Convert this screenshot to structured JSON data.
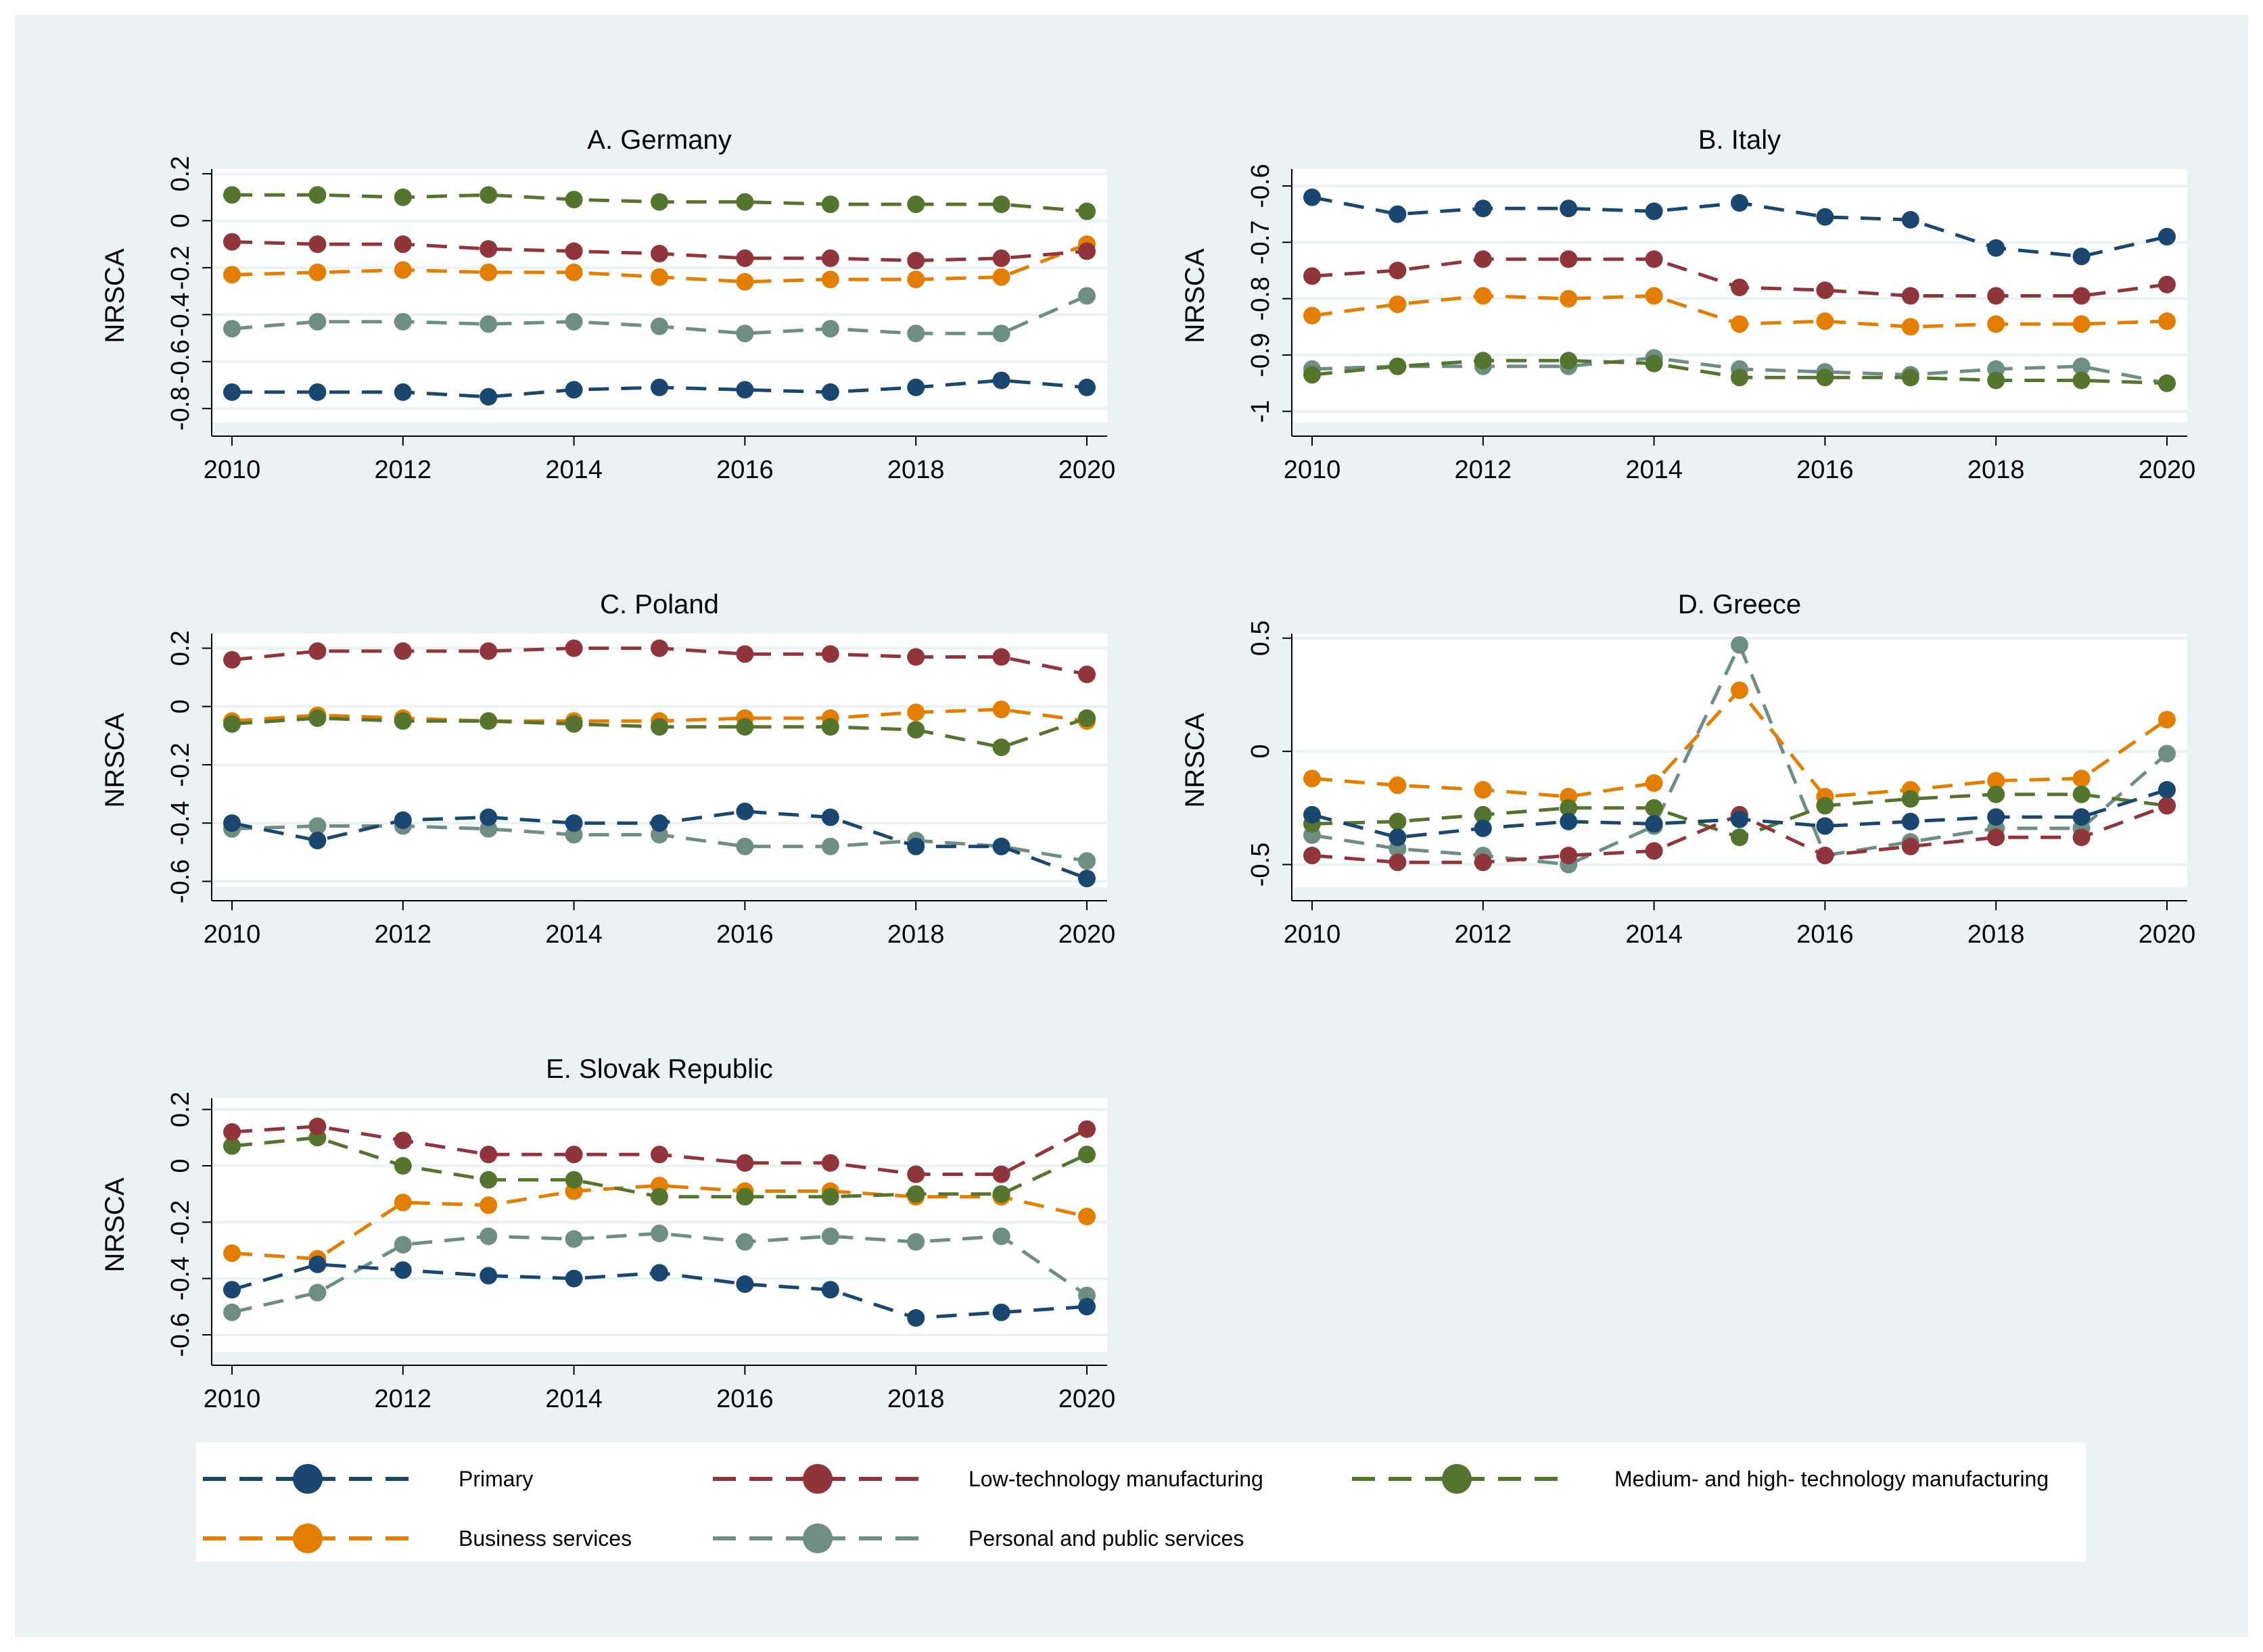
{
  "chart_data": {
    "type": "line",
    "x": [
      2010,
      2011,
      2012,
      2013,
      2014,
      2015,
      2016,
      2017,
      2018,
      2019,
      2020
    ],
    "legend": {
      "placement": "bottom",
      "entries": [
        {
          "key": "primary",
          "label": "Primary",
          "color": "#1a476f"
        },
        {
          "key": "low",
          "label": "Low-technology manufacturing",
          "color": "#90353b"
        },
        {
          "key": "medhigh",
          "label": "Medium- and high- technology manufacturing",
          "color": "#55752f"
        },
        {
          "key": "business",
          "label": "Business services",
          "color": "#e37e00"
        },
        {
          "key": "personal",
          "label": "Personal and public services",
          "color": "#6e8e84"
        }
      ]
    },
    "panels": [
      {
        "id": "germany",
        "title": "A. Germany",
        "ylabel": "NRSCA",
        "xticks": [
          "2010",
          "2012",
          "2014",
          "2016",
          "2018",
          "2020"
        ],
        "ylim": [
          -0.86,
          0.22
        ],
        "yticks": [
          {
            "value": 0.2,
            "label": "0.2"
          },
          {
            "value": 0,
            "label": "0"
          },
          {
            "value": -0.2,
            "label": "-0.2"
          },
          {
            "value": -0.4,
            "label": "-0.4"
          },
          {
            "value": -0.6,
            "label": "-0.6"
          },
          {
            "value": -0.8,
            "label": "-0.8"
          }
        ],
        "series": [
          {
            "key": "primary",
            "values": [
              -0.73,
              -0.73,
              -0.73,
              -0.75,
              -0.72,
              -0.71,
              -0.72,
              -0.73,
              -0.71,
              -0.68,
              -0.71
            ]
          },
          {
            "key": "low",
            "values": [
              -0.09,
              -0.1,
              -0.1,
              -0.12,
              -0.13,
              -0.14,
              -0.16,
              -0.16,
              -0.17,
              -0.16,
              -0.13
            ]
          },
          {
            "key": "medhigh",
            "values": [
              0.11,
              0.11,
              0.1,
              0.11,
              0.09,
              0.08,
              0.08,
              0.07,
              0.07,
              0.07,
              0.04
            ]
          },
          {
            "key": "business",
            "values": [
              -0.23,
              -0.22,
              -0.21,
              -0.22,
              -0.22,
              -0.24,
              -0.26,
              -0.25,
              -0.25,
              -0.24,
              -0.1
            ]
          },
          {
            "key": "personal",
            "values": [
              -0.46,
              -0.43,
              -0.43,
              -0.44,
              -0.43,
              -0.45,
              -0.48,
              -0.46,
              -0.48,
              -0.48,
              -0.32
            ]
          }
        ]
      },
      {
        "id": "italy",
        "title": "B. Italy",
        "ylabel": "NRSCA",
        "xticks": [
          "2010",
          "2012",
          "2014",
          "2016",
          "2018",
          "2020"
        ],
        "ylim": [
          -1.02,
          -0.57
        ],
        "yticks": [
          {
            "value": -0.6,
            "label": "-0.6"
          },
          {
            "value": -0.7,
            "label": "-0.7"
          },
          {
            "value": -0.8,
            "label": "-0.8"
          },
          {
            "value": -0.9,
            "label": "-0.9"
          },
          {
            "value": -1.0,
            "label": "-1"
          }
        ],
        "series": [
          {
            "key": "primary",
            "values": [
              -0.62,
              -0.65,
              -0.64,
              -0.64,
              -0.645,
              -0.63,
              -0.655,
              -0.66,
              -0.71,
              -0.725,
              -0.69
            ]
          },
          {
            "key": "low",
            "values": [
              -0.76,
              -0.75,
              -0.73,
              -0.73,
              -0.73,
              -0.78,
              -0.785,
              -0.795,
              -0.795,
              -0.795,
              -0.775
            ]
          },
          {
            "key": "medhigh",
            "values": [
              -0.935,
              -0.92,
              -0.91,
              -0.91,
              -0.915,
              -0.94,
              -0.94,
              -0.94,
              -0.945,
              -0.945,
              -0.95
            ]
          },
          {
            "key": "business",
            "values": [
              -0.83,
              -0.81,
              -0.795,
              -0.8,
              -0.795,
              -0.845,
              -0.84,
              -0.85,
              -0.845,
              -0.845,
              -0.84
            ]
          },
          {
            "key": "personal",
            "values": [
              -0.925,
              -0.92,
              -0.92,
              -0.92,
              -0.905,
              -0.925,
              -0.93,
              -0.935,
              -0.925,
              -0.92,
              -0.95
            ]
          }
        ]
      },
      {
        "id": "poland",
        "title": "C. Poland",
        "ylabel": "NRSCA",
        "xticks": [
          "2010",
          "2012",
          "2014",
          "2016",
          "2018",
          "2020"
        ],
        "ylim": [
          -0.62,
          0.25
        ],
        "yticks": [
          {
            "value": 0.2,
            "label": "0.2"
          },
          {
            "value": 0,
            "label": "0"
          },
          {
            "value": -0.2,
            "label": "-0.2"
          },
          {
            "value": -0.4,
            "label": "-0.4"
          },
          {
            "value": -0.6,
            "label": "-0.6"
          }
        ],
        "series": [
          {
            "key": "primary",
            "values": [
              -0.4,
              -0.46,
              -0.39,
              -0.38,
              -0.4,
              -0.4,
              -0.36,
              -0.38,
              -0.48,
              -0.48,
              -0.59
            ]
          },
          {
            "key": "low",
            "values": [
              0.16,
              0.19,
              0.19,
              0.19,
              0.2,
              0.2,
              0.18,
              0.18,
              0.17,
              0.17,
              0.11
            ]
          },
          {
            "key": "medhigh",
            "values": [
              -0.06,
              -0.04,
              -0.05,
              -0.05,
              -0.06,
              -0.07,
              -0.07,
              -0.07,
              -0.08,
              -0.14,
              -0.04
            ]
          },
          {
            "key": "business",
            "values": [
              -0.05,
              -0.03,
              -0.04,
              -0.05,
              -0.05,
              -0.05,
              -0.04,
              -0.04,
              -0.02,
              -0.01,
              -0.05
            ]
          },
          {
            "key": "personal",
            "values": [
              -0.42,
              -0.41,
              -0.41,
              -0.42,
              -0.44,
              -0.44,
              -0.48,
              -0.48,
              -0.46,
              -0.48,
              -0.53
            ]
          }
        ]
      },
      {
        "id": "greece",
        "title": "D. Greece",
        "ylabel": "NRSCA",
        "xticks": [
          "2010",
          "2012",
          "2014",
          "2016",
          "2018",
          "2020"
        ],
        "ylim": [
          -0.6,
          0.52
        ],
        "yticks": [
          {
            "value": 0.5,
            "label": "0.5"
          },
          {
            "value": 0,
            "label": "0"
          },
          {
            "value": -0.5,
            "label": "-0.5"
          }
        ],
        "series": [
          {
            "key": "primary",
            "values": [
              -0.28,
              -0.38,
              -0.34,
              -0.31,
              -0.32,
              -0.3,
              -0.33,
              -0.31,
              -0.29,
              -0.29,
              -0.17
            ]
          },
          {
            "key": "low",
            "values": [
              -0.46,
              -0.49,
              -0.49,
              -0.46,
              -0.44,
              -0.28,
              -0.46,
              -0.42,
              -0.38,
              -0.38,
              -0.24
            ]
          },
          {
            "key": "medhigh",
            "values": [
              -0.32,
              -0.31,
              -0.28,
              -0.25,
              -0.25,
              -0.38,
              -0.24,
              -0.21,
              -0.19,
              -0.19,
              -0.24
            ]
          },
          {
            "key": "business",
            "values": [
              -0.12,
              -0.15,
              -0.17,
              -0.2,
              -0.14,
              0.27,
              -0.2,
              -0.17,
              -0.13,
              -0.12,
              0.14
            ]
          },
          {
            "key": "personal",
            "values": [
              -0.37,
              -0.43,
              -0.46,
              -0.5,
              -0.33,
              0.47,
              -0.46,
              -0.4,
              -0.34,
              -0.34,
              -0.01
            ]
          }
        ]
      },
      {
        "id": "slovak",
        "title": "E. Slovak Republic",
        "ylabel": "NRSCA",
        "xticks": [
          "2010",
          "2012",
          "2014",
          "2016",
          "2018",
          "2020"
        ],
        "ylim": [
          -0.66,
          0.24
        ],
        "yticks": [
          {
            "value": 0.2,
            "label": "0.2"
          },
          {
            "value": 0,
            "label": "0"
          },
          {
            "value": -0.2,
            "label": "-0.2"
          },
          {
            "value": -0.4,
            "label": "-0.4"
          },
          {
            "value": -0.6,
            "label": "-0.6"
          }
        ],
        "series": [
          {
            "key": "primary",
            "values": [
              -0.44,
              -0.35,
              -0.37,
              -0.39,
              -0.4,
              -0.38,
              -0.42,
              -0.44,
              -0.54,
              -0.52,
              -0.5
            ]
          },
          {
            "key": "low",
            "values": [
              0.12,
              0.14,
              0.09,
              0.04,
              0.04,
              0.04,
              0.01,
              0.01,
              -0.03,
              -0.03,
              0.13
            ]
          },
          {
            "key": "medhigh",
            "values": [
              0.07,
              0.1,
              0.0,
              -0.05,
              -0.05,
              -0.11,
              -0.11,
              -0.11,
              -0.1,
              -0.1,
              0.04
            ]
          },
          {
            "key": "business",
            "values": [
              -0.31,
              -0.33,
              -0.13,
              -0.14,
              -0.09,
              -0.07,
              -0.09,
              -0.09,
              -0.11,
              -0.11,
              -0.18
            ]
          },
          {
            "key": "personal",
            "values": [
              -0.52,
              -0.45,
              -0.28,
              -0.25,
              -0.26,
              -0.24,
              -0.27,
              -0.25,
              -0.27,
              -0.25,
              -0.46
            ]
          }
        ]
      }
    ]
  }
}
